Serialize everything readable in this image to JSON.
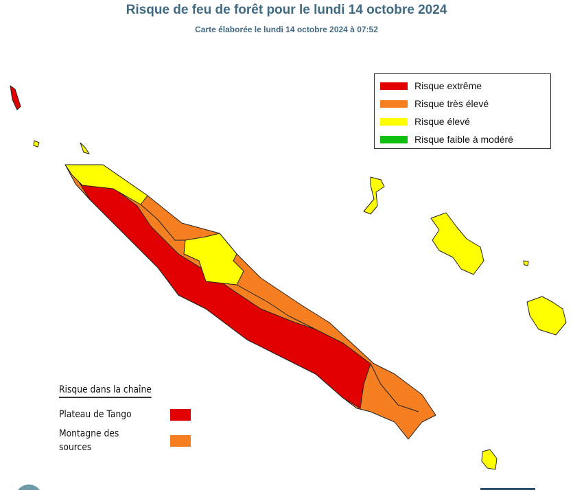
{
  "header": {
    "title": "Risque de feu de forêt pour le lundi 14 octobre 2024",
    "subtitle": "Carte élaborée le lundi 14 octobre 2024 à 07:52"
  },
  "legend": {
    "items": [
      {
        "label": "Risque extrême",
        "color": "#e00000"
      },
      {
        "label": "Risque très élevé",
        "color": "#f57f21"
      },
      {
        "label": "Risque élevé",
        "color": "#ffff00"
      },
      {
        "label": "Risque faible à modéré",
        "color": "#10c010"
      }
    ]
  },
  "chain": {
    "title": "Risque dans la chaîne",
    "items": [
      {
        "label": "Plateau de Tango",
        "color": "#e00000"
      },
      {
        "label": "Montagne des sources",
        "color": "#f57f21"
      }
    ]
  }
}
